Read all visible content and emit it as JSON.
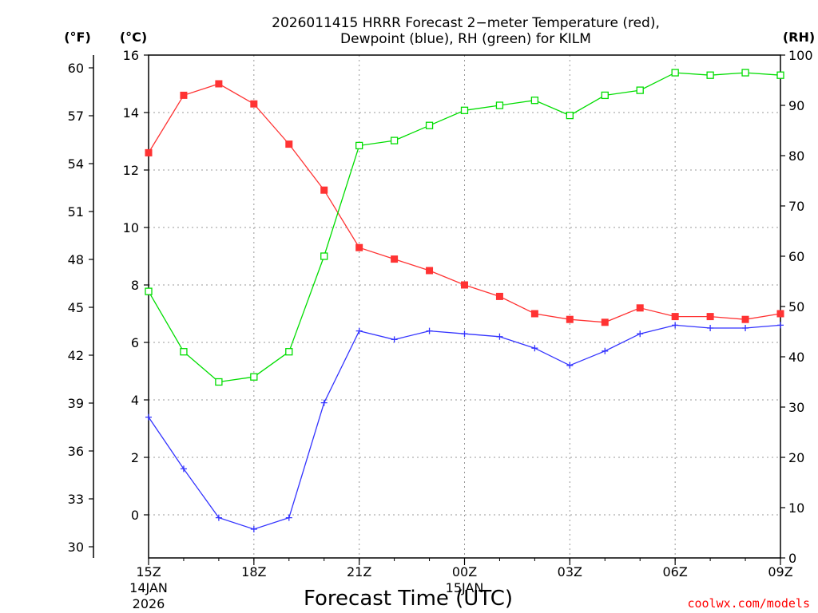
{
  "chart_data": {
    "type": "line",
    "title_line1": "2026011415 HRRR Forecast 2−meter Temperature (red),",
    "title_line2": "Dewpoint (blue), RH (green) for KILM",
    "xlabel": "Forecast Time (UTC)",
    "credit": "coolwx.com/models",
    "unit_left_f": "(°F)",
    "unit_left_c": "(°C)",
    "unit_right_rh": "(RH)",
    "x": [
      0,
      1,
      2,
      3,
      4,
      5,
      6,
      7,
      8,
      9,
      10,
      11,
      12,
      13,
      14,
      15,
      16,
      17,
      18
    ],
    "xlim": [
      0,
      18
    ],
    "x_ticks": [
      {
        "x": 0,
        "label": "15Z",
        "sub1": "14JAN",
        "sub2": "2026"
      },
      {
        "x": 3,
        "label": "18Z"
      },
      {
        "x": 6,
        "label": "21Z"
      },
      {
        "x": 9,
        "label": "00Z",
        "sub1": "15JAN"
      },
      {
        "x": 12,
        "label": "03Z"
      },
      {
        "x": 15,
        "label": "06Z"
      },
      {
        "x": 18,
        "label": "09Z"
      }
    ],
    "ylim_c": [
      -1.5,
      16
    ],
    "c_ticks": [
      "0",
      "2",
      "4",
      "6",
      "8",
      "10",
      "12",
      "14",
      "16"
    ],
    "f_ticks": [
      "30",
      "33",
      "36",
      "39",
      "42",
      "45",
      "48",
      "51",
      "54",
      "57",
      "60"
    ],
    "rh_ticks": [
      "0",
      "10",
      "20",
      "30",
      "40",
      "50",
      "60",
      "70",
      "80",
      "90",
      "100"
    ],
    "series": [
      {
        "name": "Temperature",
        "color": "#ff3333",
        "marker": "filled-square",
        "values": [
          12.6,
          14.6,
          15.0,
          14.3,
          12.9,
          11.3,
          9.3,
          8.9,
          8.5,
          8.0,
          7.6,
          7.0,
          6.8,
          6.7,
          7.2,
          6.9,
          6.9,
          6.8,
          7.0
        ]
      },
      {
        "name": "Dewpoint",
        "color": "#3333ff",
        "marker": "plus",
        "values": [
          3.4,
          1.6,
          -0.1,
          -0.5,
          -0.1,
          3.9,
          6.4,
          6.1,
          6.4,
          6.3,
          6.2,
          5.8,
          5.2,
          5.7,
          6.3,
          6.6,
          6.5,
          6.5,
          6.6
        ]
      },
      {
        "name": "RH",
        "color": "#00dd00",
        "marker": "open-square",
        "axis": "rh",
        "values": [
          53,
          41,
          35,
          36,
          41,
          60,
          82,
          83,
          86,
          89,
          90,
          91,
          88,
          92,
          93,
          96.5,
          96,
          96.5,
          96
        ]
      }
    ]
  }
}
